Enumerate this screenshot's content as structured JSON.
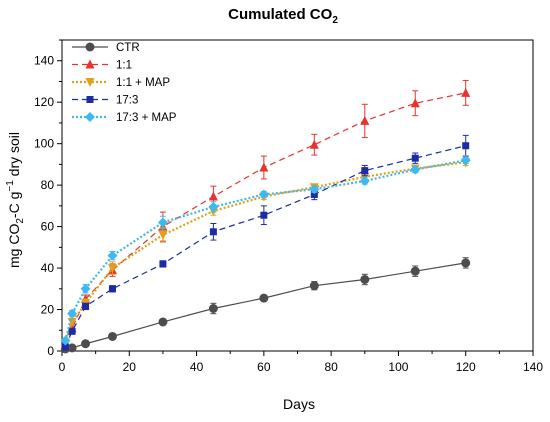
{
  "chart_data": {
    "type": "line",
    "title": "Cumulated CO",
    "title_sub": "2",
    "xlabel": "Days",
    "ylabel_parts": [
      "mg CO",
      "2",
      "-C g",
      "−1",
      " dry soil"
    ],
    "xlim": [
      0,
      140
    ],
    "ylim": [
      0,
      150
    ],
    "xticks": [
      0,
      20,
      40,
      60,
      80,
      100,
      120,
      140
    ],
    "yticks": [
      0,
      20,
      40,
      60,
      80,
      100,
      120,
      140
    ],
    "grid": false,
    "legend_position": "top-left",
    "series": [
      {
        "name": "CTR",
        "color": "#4d4d4d",
        "line_style": "solid",
        "marker": "circle",
        "x": [
          1,
          3,
          7,
          15,
          30,
          45,
          60,
          75,
          90,
          105,
          120
        ],
        "y": [
          1,
          1.5,
          3.5,
          7,
          14,
          20.5,
          25.5,
          31.5,
          34.5,
          38.5,
          42.5
        ],
        "err": [
          0.5,
          0.5,
          0.8,
          0.8,
          1.0,
          2.5,
          1.5,
          2.0,
          2.5,
          2.5,
          2.5
        ]
      },
      {
        "name": "1:1",
        "color": "#e8322e",
        "line_style": "dashed",
        "marker": "triangle-up",
        "x": [
          1,
          3,
          7,
          15,
          30,
          45,
          60,
          75,
          90,
          105,
          120
        ],
        "y": [
          3,
          11,
          25,
          39,
          60,
          74.5,
          88.5,
          99.5,
          111,
          119.5,
          124.5
        ],
        "err": [
          1,
          1.5,
          2,
          3,
          7,
          5,
          5.5,
          5,
          8,
          6,
          6
        ]
      },
      {
        "name": "1:1 + MAP",
        "color": "#e1a01a",
        "line_style": "dotted",
        "marker": "triangle-down",
        "x": [
          1,
          3,
          7,
          15,
          30,
          45,
          60,
          75,
          90,
          105,
          120
        ],
        "y": [
          4,
          14,
          23,
          40,
          56,
          67.5,
          74.5,
          79,
          84,
          88,
          91
        ],
        "err": [
          1,
          1.5,
          2,
          3,
          3.5,
          2,
          1.5,
          1.5,
          1.5,
          1.5,
          1.5
        ]
      },
      {
        "name": "17:3",
        "color": "#1c2ca3",
        "line_style": "dashed",
        "marker": "square",
        "x": [
          1,
          3,
          7,
          15,
          30,
          45,
          60,
          75,
          90,
          105,
          120
        ],
        "y": [
          2,
          9.5,
          21.5,
          30,
          42,
          57.5,
          65.5,
          75.5,
          87,
          93,
          99
        ],
        "err": [
          0.8,
          1,
          1.5,
          1.5,
          1.5,
          4,
          4.5,
          2.5,
          2.5,
          2.5,
          5
        ]
      },
      {
        "name": "17:3 + MAP",
        "color": "#3fb8ef",
        "line_style": "dotted",
        "marker": "diamond",
        "x": [
          1,
          3,
          7,
          15,
          30,
          45,
          60,
          75,
          90,
          105,
          120
        ],
        "y": [
          5,
          18,
          30,
          46,
          62,
          69.5,
          75.5,
          78,
          82,
          87.5,
          92
        ],
        "err": [
          1,
          1.5,
          2,
          2,
          3,
          2.5,
          1.5,
          1.5,
          1.5,
          1.5,
          1.5
        ]
      }
    ]
  }
}
